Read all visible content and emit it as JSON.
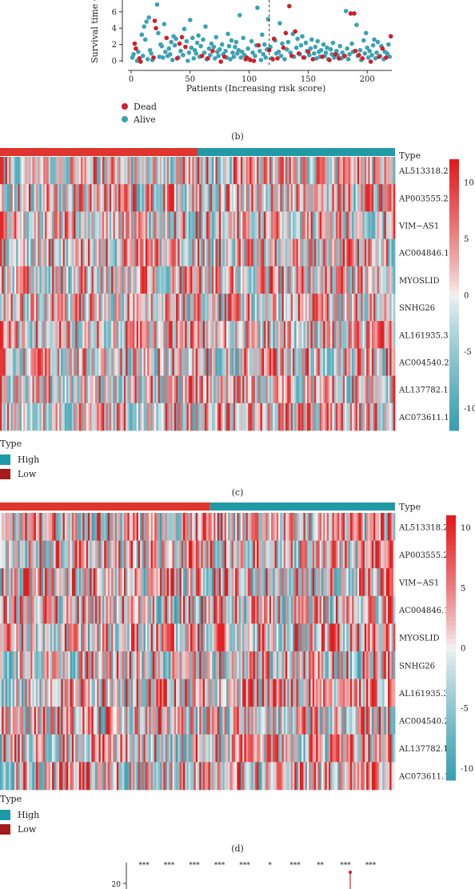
{
  "colors": {
    "dead": "#d11f2a",
    "alive": "#3ba2b4",
    "high": "#1f9aa8",
    "low": "#a51b1b",
    "type_high_bar": "#229aa6",
    "type_low_bar": "#e0342f",
    "heat_pos": "#e41a1c",
    "heat_zero": "#f4f4f4",
    "heat_neg": "#3a9fb0"
  },
  "panel_b": {
    "label": "(b)",
    "legend": {
      "dead": "Dead",
      "alive": "Alive"
    }
  },
  "panel_c": {
    "label": "(c)",
    "legend": {
      "title": "Type",
      "high": "High",
      "low": "Low"
    },
    "type_label": "Type"
  },
  "panel_d": {
    "label": "(d)",
    "legend": {
      "title": "Type",
      "high": "High",
      "low": "Low"
    },
    "type_label": "Type"
  },
  "panel_e": {
    "stars": [
      "***",
      "***",
      "***",
      "***",
      "***",
      "*",
      "***",
      "**",
      "***",
      "***"
    ],
    "ytick": "20"
  },
  "chart_data": [
    {
      "type": "scatter",
      "xlabel": "Patients (Increasing risk score)",
      "ylabel": "Survival time (",
      "x_ticks": [
        0,
        50,
        100,
        150,
        200
      ],
      "y_ticks": [
        0,
        2,
        4,
        6
      ],
      "xlim": [
        -5,
        228
      ],
      "ylim": [
        -0.3,
        7.5
      ],
      "cutoff_x": 117,
      "series": [
        {
          "name": "Dead",
          "points": [
            [
              3,
              2.1
            ],
            [
              4,
              1.5
            ],
            [
              7,
              0.3
            ],
            [
              8,
              -0.1
            ],
            [
              19,
              0.4
            ],
            [
              20,
              4.9
            ],
            [
              21,
              4.0
            ],
            [
              30,
              2.8
            ],
            [
              39,
              0.3
            ],
            [
              41,
              2.1
            ],
            [
              43,
              2.9
            ],
            [
              46,
              1.7
            ],
            [
              60,
              0.6
            ],
            [
              65,
              0.3
            ],
            [
              69,
              1.2
            ],
            [
              76,
              -0.1
            ],
            [
              79,
              0.5
            ],
            [
              97,
              0.2
            ],
            [
              98,
              0.4
            ],
            [
              101,
              0.1
            ],
            [
              104,
              0.0
            ],
            [
              108,
              1.9
            ],
            [
              117,
              1.3
            ],
            [
              120,
              0.2
            ],
            [
              121,
              2.7
            ],
            [
              124,
              0.3
            ],
            [
              129,
              1.6
            ],
            [
              131,
              3.4
            ],
            [
              134,
              6.7
            ],
            [
              136,
              0.6
            ],
            [
              139,
              3.6
            ],
            [
              142,
              0.9
            ],
            [
              146,
              0.4
            ],
            [
              150,
              1.1
            ],
            [
              154,
              0.2
            ],
            [
              162,
              0.5
            ],
            [
              168,
              0.1
            ],
            [
              173,
              0.8
            ],
            [
              176,
              0.3
            ],
            [
              181,
              0.6
            ],
            [
              186,
              5.8
            ],
            [
              189,
              5.8
            ],
            [
              190,
              1.2
            ],
            [
              193,
              0.7
            ],
            [
              196,
              0.3
            ],
            [
              203,
              -0.1
            ],
            [
              210,
              0.5
            ],
            [
              213,
              1.5
            ],
            [
              216,
              0.4
            ],
            [
              220,
              3.0
            ]
          ]
        },
        {
          "name": "Alive",
          "points": [
            [
              1,
              0.4
            ],
            [
              2,
              0.8
            ],
            [
              5,
              0.0
            ],
            [
              6,
              1.1
            ],
            [
              9,
              3.2
            ],
            [
              10,
              0.6
            ],
            [
              11,
              4.2
            ],
            [
              12,
              2.6
            ],
            [
              13,
              4.8
            ],
            [
              14,
              0.2
            ],
            [
              15,
              5.3
            ],
            [
              16,
              1.3
            ],
            [
              17,
              0.9
            ],
            [
              18,
              0.1
            ],
            [
              22,
              6.9
            ],
            [
              23,
              3.4
            ],
            [
              24,
              0.5
            ],
            [
              25,
              2.0
            ],
            [
              26,
              1.8
            ],
            [
              27,
              0.4
            ],
            [
              28,
              4.5
            ],
            [
              29,
              1.1
            ],
            [
              31,
              0.6
            ],
            [
              32,
              1.5
            ],
            [
              33,
              0.8
            ],
            [
              34,
              2.3
            ],
            [
              35,
              0.1
            ],
            [
              36,
              3.0
            ],
            [
              37,
              1.9
            ],
            [
              38,
              2.7
            ],
            [
              40,
              0.4
            ],
            [
              42,
              1.2
            ],
            [
              44,
              0.7
            ],
            [
              45,
              3.9
            ],
            [
              47,
              2.4
            ],
            [
              48,
              0.0
            ],
            [
              49,
              1.0
            ],
            [
              50,
              5.0
            ],
            [
              51,
              1.6
            ],
            [
              52,
              2.8
            ],
            [
              53,
              0.3
            ],
            [
              54,
              1.3
            ],
            [
              55,
              0.9
            ],
            [
              56,
              2.2
            ],
            [
              57,
              3.1
            ],
            [
              58,
              0.5
            ],
            [
              59,
              1.8
            ],
            [
              61,
              2.6
            ],
            [
              62,
              1.0
            ],
            [
              63,
              4.2
            ],
            [
              64,
              0.2
            ],
            [
              66,
              1.5
            ],
            [
              67,
              0.7
            ],
            [
              68,
              2.1
            ],
            [
              70,
              1.7
            ],
            [
              71,
              0.3
            ],
            [
              72,
              2.9
            ],
            [
              73,
              1.1
            ],
            [
              74,
              0.6
            ],
            [
              75,
              1.4
            ],
            [
              77,
              2.0
            ],
            [
              78,
              0.8
            ],
            [
              80,
              1.2
            ],
            [
              81,
              0.4
            ],
            [
              82,
              3.3
            ],
            [
              83,
              1.8
            ],
            [
              84,
              0.2
            ],
            [
              85,
              2.5
            ],
            [
              86,
              1.0
            ],
            [
              87,
              0.5
            ],
            [
              88,
              1.7
            ],
            [
              89,
              2.3
            ],
            [
              90,
              0.9
            ],
            [
              91,
              1.3
            ],
            [
              92,
              5.6
            ],
            [
              93,
              0.4
            ],
            [
              94,
              1.1
            ],
            [
              95,
              2.8
            ],
            [
              96,
              0.7
            ],
            [
              99,
              1.5
            ],
            [
              100,
              0.2
            ],
            [
              102,
              2.4
            ],
            [
              103,
              1.0
            ],
            [
              105,
              0.6
            ],
            [
              106,
              1.9
            ],
            [
              107,
              6.5
            ],
            [
              109,
              1.2
            ],
            [
              110,
              0.1
            ],
            [
              111,
              3.2
            ],
            [
              112,
              0.8
            ],
            [
              113,
              2.0
            ],
            [
              114,
              0.4
            ],
            [
              115,
              1.4
            ],
            [
              116,
              5.1
            ],
            [
              118,
              1.7
            ],
            [
              119,
              0.3
            ],
            [
              122,
              2.5
            ],
            [
              123,
              0.9
            ],
            [
              125,
              1.1
            ],
            [
              126,
              4.6
            ],
            [
              127,
              0.6
            ],
            [
              128,
              2.1
            ],
            [
              130,
              0.2
            ],
            [
              132,
              1.4
            ],
            [
              133,
              2.3
            ],
            [
              135,
              1.0
            ],
            [
              137,
              3.3
            ],
            [
              138,
              0.5
            ],
            [
              140,
              1.6
            ],
            [
              141,
              2.7
            ],
            [
              143,
              0.8
            ],
            [
              144,
              1.9
            ],
            [
              145,
              3.0
            ],
            [
              147,
              0.4
            ],
            [
              148,
              2.2
            ],
            [
              149,
              1.2
            ],
            [
              151,
              0.7
            ],
            [
              152,
              1.5
            ],
            [
              153,
              2.6
            ],
            [
              155,
              0.9
            ],
            [
              156,
              1.7
            ],
            [
              157,
              0.3
            ],
            [
              158,
              2.4
            ],
            [
              159,
              1.1
            ],
            [
              160,
              0.5
            ],
            [
              161,
              1.3
            ],
            [
              163,
              2.0
            ],
            [
              164,
              0.6
            ],
            [
              165,
              1.0
            ],
            [
              166,
              1.6
            ],
            [
              167,
              0.2
            ],
            [
              169,
              1.4
            ],
            [
              170,
              0.8
            ],
            [
              171,
              2.2
            ],
            [
              172,
              0.4
            ],
            [
              174,
              1.2
            ],
            [
              175,
              0.7
            ],
            [
              177,
              1.8
            ],
            [
              178,
              0.3
            ],
            [
              179,
              1.0
            ],
            [
              180,
              0.5
            ],
            [
              182,
              6.1
            ],
            [
              183,
              1.5
            ],
            [
              184,
              0.2
            ],
            [
              185,
              0.8
            ],
            [
              187,
              2.1
            ],
            [
              188,
              1.1
            ],
            [
              191,
              4.4
            ],
            [
              192,
              0.6
            ],
            [
              194,
              1.3
            ],
            [
              195,
              0.1
            ],
            [
              197,
              2.5
            ],
            [
              198,
              0.9
            ],
            [
              199,
              3.4
            ],
            [
              200,
              1.6
            ],
            [
              201,
              0.4
            ],
            [
              202,
              1.2
            ],
            [
              204,
              0.7
            ],
            [
              205,
              1.9
            ],
            [
              206,
              2.6
            ],
            [
              207,
              0.3
            ],
            [
              208,
              1.0
            ],
            [
              209,
              2.3
            ],
            [
              211,
              0.6
            ],
            [
              212,
              1.8
            ],
            [
              214,
              0.2
            ],
            [
              215,
              1.1
            ],
            [
              217,
              0.9
            ],
            [
              218,
              2.0
            ],
            [
              219,
              0.5
            ]
          ]
        }
      ]
    },
    {
      "type": "heatmap",
      "genes": [
        "AL513318.2",
        "AP003555.2",
        "VIM−AS1",
        "AC004846.1",
        "MYOSLID",
        "SNHG26",
        "AL161935.3",
        "AC004540.2",
        "AL137782.1",
        "AC073611.1"
      ],
      "group_split_fraction": 0.5,
      "color_scale": {
        "ticks": [
          10,
          5,
          0,
          -5,
          -10
        ],
        "min": -12,
        "max": 12
      },
      "column_count": 220
    },
    {
      "type": "heatmap",
      "genes": [
        "AL513318.2",
        "AP003555.2",
        "VIM−AS1",
        "AC004846.1",
        "MYOSLID",
        "SNHG26",
        "AL161935.3",
        "AC004540.2",
        "AL137782.1",
        "AC073611.1"
      ],
      "group_split_fraction": 0.53,
      "color_scale": {
        "ticks": [
          10,
          5,
          0,
          -5,
          -10
        ],
        "min": -11,
        "max": 11
      },
      "column_count": 220
    }
  ]
}
